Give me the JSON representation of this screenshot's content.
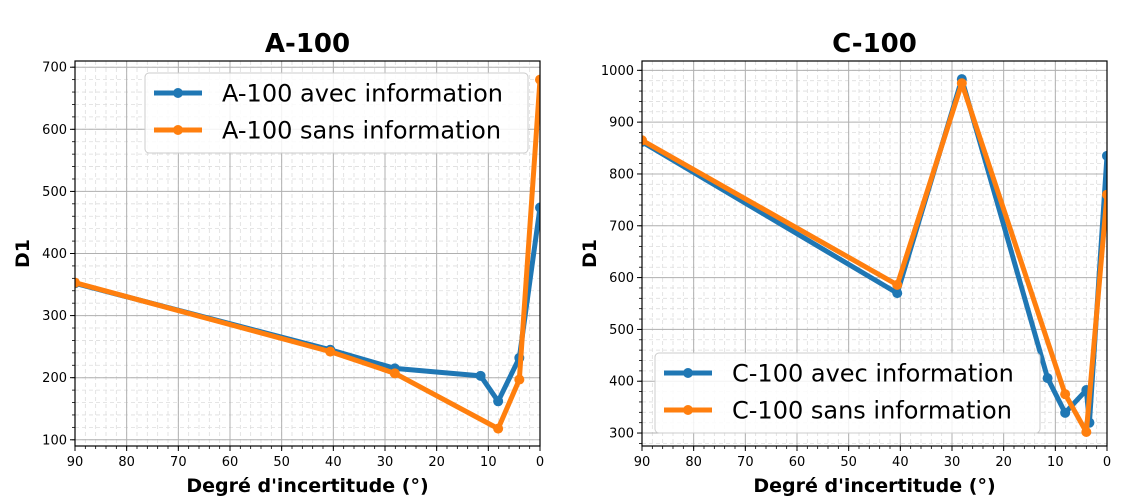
{
  "chart_data": [
    {
      "type": "line",
      "title": "A-100",
      "xlabel": "Degré d'incertitude (°)",
      "ylabel": "D1",
      "xlim": [
        90,
        0
      ],
      "ylim": [
        90,
        710
      ],
      "x_ticks": [
        90,
        80,
        70,
        60,
        50,
        40,
        30,
        20,
        10,
        0
      ],
      "y_ticks": [
        100,
        200,
        300,
        400,
        500,
        600,
        700
      ],
      "grid": true,
      "legend_position": "upper-right",
      "series": [
        {
          "name": "A-100 avec information",
          "color": "#1f77b4",
          "x": [
            90,
            40.6,
            28.1,
            11.5,
            8.1,
            4,
            0
          ],
          "y": [
            352,
            245,
            215,
            203,
            162,
            232,
            474
          ]
        },
        {
          "name": "A-100 sans information",
          "color": "#ff7f0e",
          "x": [
            90,
            40.6,
            28.1,
            8.1,
            4,
            0
          ],
          "y": [
            353,
            242,
            207,
            118,
            197,
            680
          ]
        }
      ]
    },
    {
      "type": "line",
      "title": "C-100",
      "xlabel": "Degré d'incertitude (°)",
      "ylabel": "D1",
      "xlim": [
        90,
        0
      ],
      "ylim": [
        275,
        1018
      ],
      "x_ticks": [
        90,
        80,
        70,
        60,
        50,
        40,
        30,
        20,
        10,
        0
      ],
      "y_ticks": [
        300,
        400,
        500,
        600,
        700,
        800,
        900,
        1000
      ],
      "grid": true,
      "legend_position": "lower-left",
      "series": [
        {
          "name": "C-100 avec information",
          "color": "#1f77b4",
          "x": [
            90,
            40.6,
            28.1,
            11.5,
            8.1,
            4,
            3.4,
            0
          ],
          "y": [
            862,
            570,
            983,
            406,
            339,
            383,
            320,
            835
          ]
        },
        {
          "name": "C-100 sans information",
          "color": "#ff7f0e",
          "x": [
            90,
            40.6,
            28.1,
            8.1,
            4,
            0
          ],
          "y": [
            865,
            586,
            975,
            375,
            302,
            760
          ]
        }
      ]
    }
  ]
}
